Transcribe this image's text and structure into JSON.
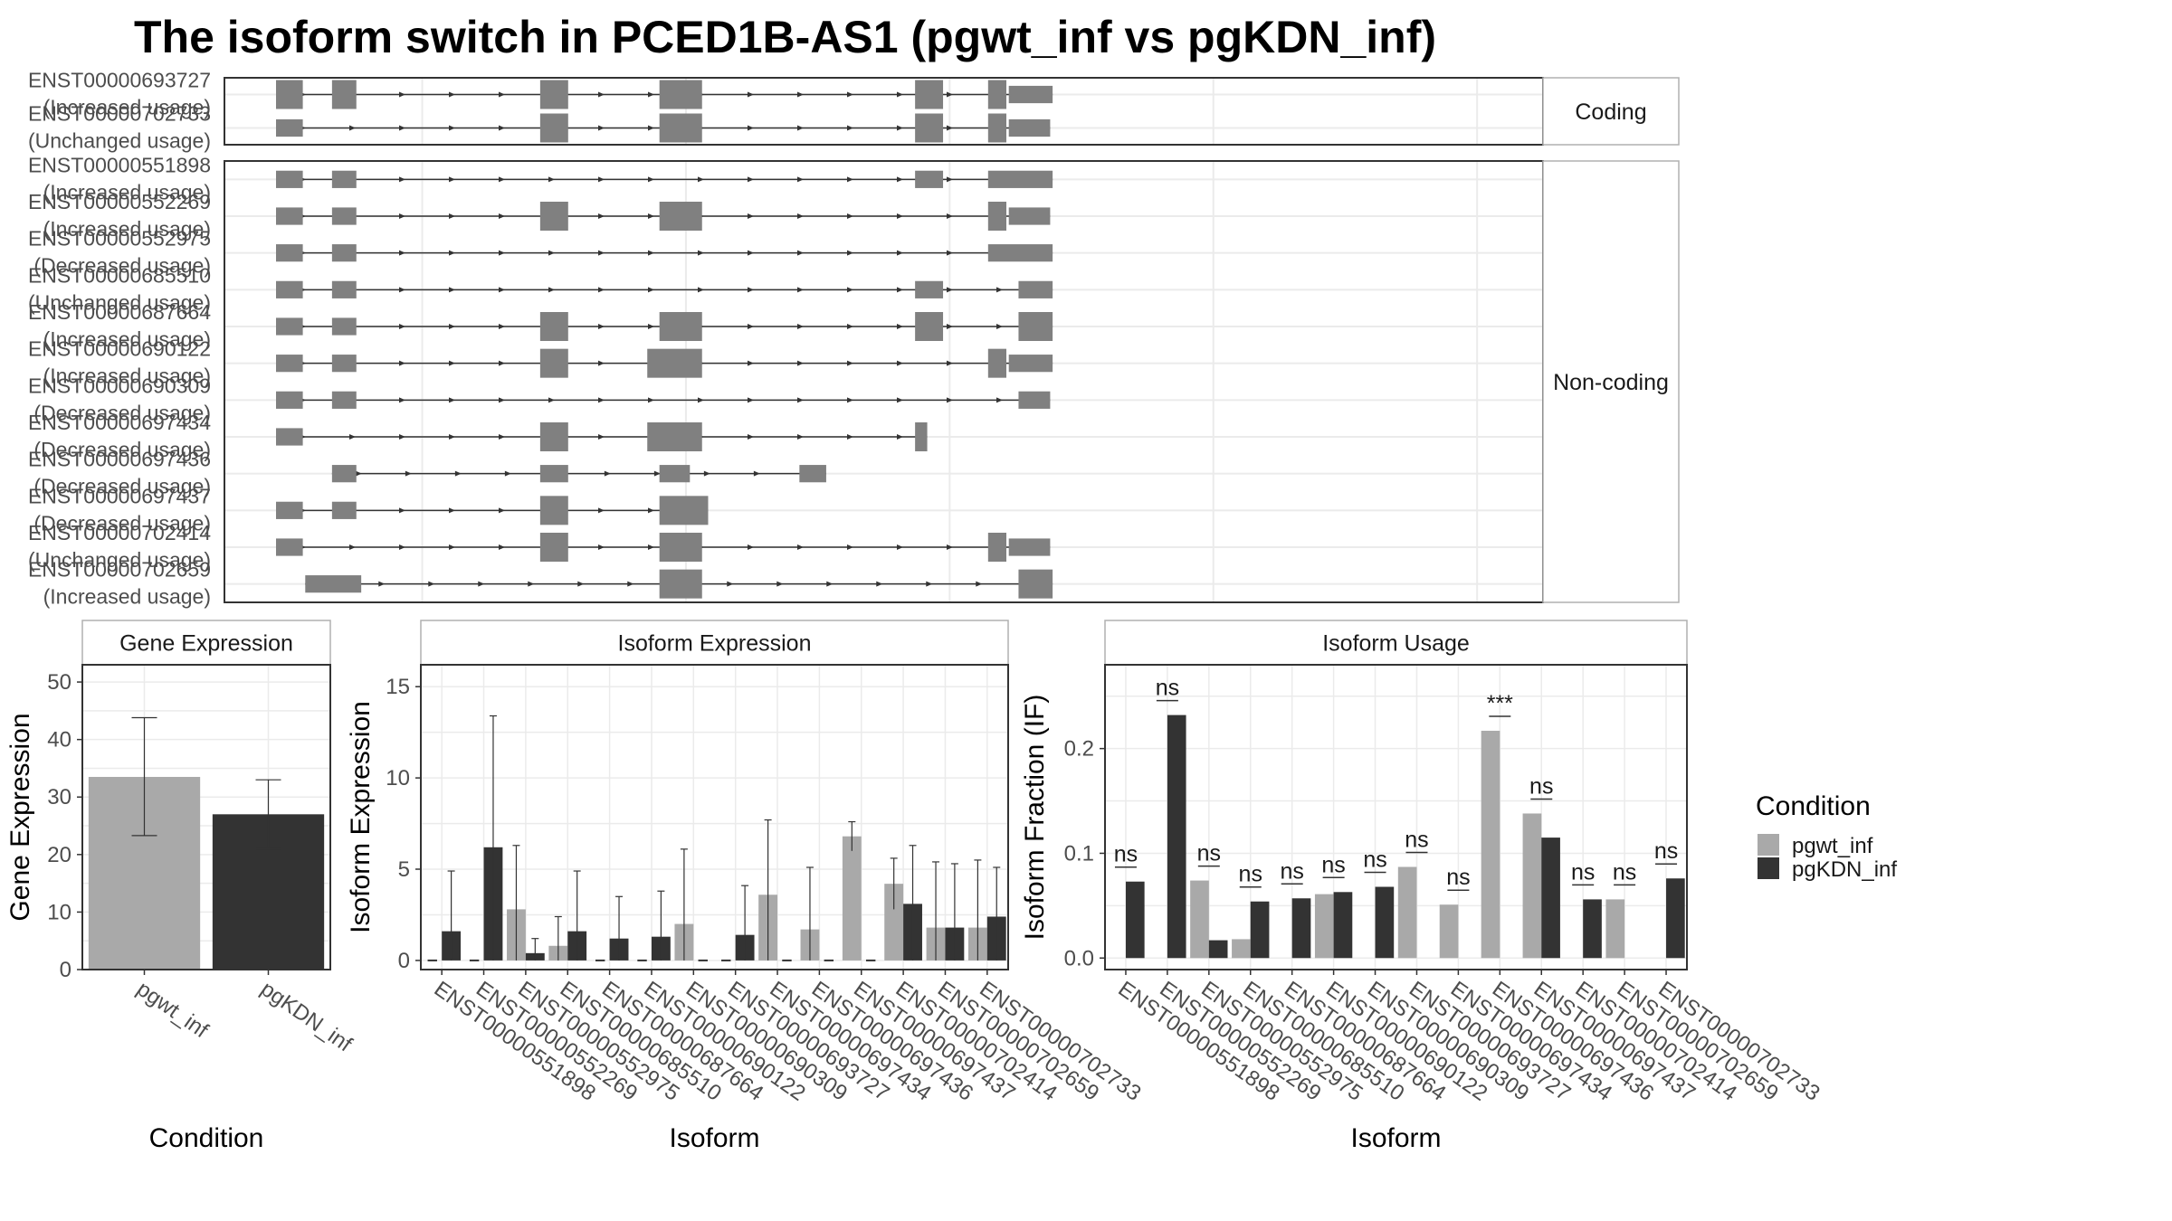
{
  "title": "The isoform switch in PCED1B-AS1 (pgwt_inf vs pgKDN_inf)",
  "colors": {
    "pgwt_inf": "#a9a9a9",
    "pgKDN_inf": "#333333",
    "exon": "#808080",
    "intron": "#333333",
    "grid": "#ebebeb",
    "panel_border": "#333333",
    "strip_border": "#b0b0b0",
    "strip_fill": "#ffffff"
  },
  "structure": {
    "groups": [
      {
        "label": "Coding",
        "transcripts": [
          {
            "id": "ENST00000693727",
            "usage": "(Increased usage)"
          },
          {
            "id": "ENST00000702733",
            "usage": "(Unchanged usage)"
          }
        ]
      },
      {
        "label": "Non-coding",
        "transcripts": [
          {
            "id": "ENST00000551898",
            "usage": "(Increased usage)"
          },
          {
            "id": "ENST00000552269",
            "usage": "(Increased usage)"
          },
          {
            "id": "ENST00000552975",
            "usage": "(Decreased usage)"
          },
          {
            "id": "ENST00000685510",
            "usage": "(Unchanged usage)"
          },
          {
            "id": "ENST00000687664",
            "usage": "(Increased usage)"
          },
          {
            "id": "ENST00000690122",
            "usage": "(Increased usage)"
          },
          {
            "id": "ENST00000690309",
            "usage": "(Decreased usage)"
          },
          {
            "id": "ENST00000697434",
            "usage": "(Decreased usage)"
          },
          {
            "id": "ENST00000697436",
            "usage": "(Decreased usage)"
          },
          {
            "id": "ENST00000697437",
            "usage": "(Decreased usage)"
          },
          {
            "id": "ENST00000702414",
            "usage": "(Unchanged usage)"
          },
          {
            "id": "ENST00000702659",
            "usage": "(Increased usage)"
          }
        ]
      }
    ]
  },
  "chart_data": [
    {
      "type": "bar",
      "strip": "Gene Expression",
      "xlabel": "Condition",
      "ylabel": "Gene Expression",
      "ylim": [
        0,
        53
      ],
      "yticks": [
        0,
        10,
        20,
        30,
        40,
        50
      ],
      "grid": true,
      "categories": [
        "pgwt_inf",
        "pgKDN_inf"
      ],
      "values": [
        33.5,
        27.0
      ],
      "error_low": [
        23.3,
        21.0
      ],
      "error_high": [
        43.8,
        33.0
      ]
    },
    {
      "type": "bar",
      "strip": "Isoform Expression",
      "xlabel": "Isoform",
      "ylabel": "Isoform Expression",
      "ylim": [
        -0.5,
        16.2
      ],
      "yticks": [
        0,
        5,
        10,
        15
      ],
      "grid": true,
      "categories": [
        "ENST00000551898",
        "ENST00000552269",
        "ENST00000552975",
        "ENST00000685510",
        "ENST00000687664",
        "ENST00000690122",
        "ENST00000690309",
        "ENST00000693727",
        "ENST00000697434",
        "ENST00000697436",
        "ENST00000697437",
        "ENST00000702414",
        "ENST00000702659",
        "ENST00000702733"
      ],
      "series": [
        {
          "name": "pgwt_inf",
          "values": [
            0,
            0,
            2.8,
            0.8,
            0,
            0,
            2.0,
            0,
            3.6,
            1.7,
            6.8,
            4.2,
            1.8,
            1.8
          ],
          "error_high": [
            0,
            0,
            6.3,
            2.4,
            0,
            0,
            6.1,
            0,
            7.7,
            5.1,
            7.6,
            5.6,
            5.4,
            5.5
          ]
        },
        {
          "name": "pgKDN_inf",
          "values": [
            1.6,
            6.2,
            0.4,
            1.6,
            1.2,
            1.3,
            0,
            1.4,
            0,
            0,
            0,
            3.1,
            1.8,
            2.4
          ],
          "error_high": [
            4.9,
            13.4,
            1.2,
            4.9,
            3.5,
            3.8,
            0,
            4.1,
            0,
            0,
            0,
            6.3,
            5.3,
            5.1
          ]
        }
      ]
    },
    {
      "type": "bar",
      "strip": "Isoform Usage",
      "xlabel": "Isoform",
      "ylabel": "Isoform Fraction (IF)",
      "ylim": [
        -0.011,
        0.28
      ],
      "yticks": [
        0.0,
        0.1,
        0.2
      ],
      "ytick_labels": [
        "0.0",
        "0.1",
        "0.2"
      ],
      "grid": true,
      "categories": [
        "ENST00000551898",
        "ENST00000552269",
        "ENST00000552975",
        "ENST00000685510",
        "ENST00000687664",
        "ENST00000690122",
        "ENST00000690309",
        "ENST00000693727",
        "ENST00000697434",
        "ENST00000697436",
        "ENST00000697437",
        "ENST00000702414",
        "ENST00000702659",
        "ENST00000702733"
      ],
      "series": [
        {
          "name": "pgwt_inf",
          "values": [
            0,
            0,
            0.074,
            0.018,
            0,
            0.061,
            0,
            0.087,
            0.051,
            0.217,
            0.138,
            0,
            0.056,
            0
          ]
        },
        {
          "name": "pgKDN_inf",
          "values": [
            0.073,
            0.232,
            0.017,
            0.054,
            0.057,
            0.063,
            0.068,
            0,
            0,
            0,
            0.115,
            0.056,
            0,
            0.076
          ]
        }
      ],
      "significance": [
        "ns",
        "ns",
        "ns",
        "ns",
        "ns",
        "ns",
        "ns",
        "ns",
        "ns",
        "***",
        "ns",
        "ns",
        "ns",
        "ns"
      ]
    }
  ],
  "legend": {
    "title": "Condition",
    "items": [
      "pgwt_inf",
      "pgKDN_inf"
    ]
  }
}
